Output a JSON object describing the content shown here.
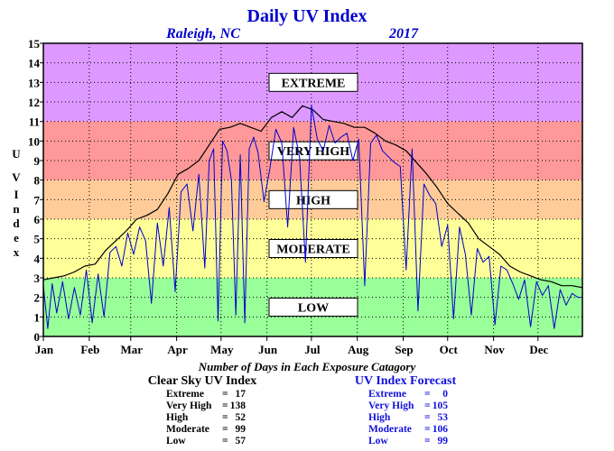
{
  "title": "Daily UV Index",
  "location": "Raleigh, NC",
  "year": "2017",
  "ylabel": "UV Index",
  "stats_title": "Number of Days in Each Exposure Catagory",
  "categories": [
    {
      "label": "EXTREME",
      "min": 11,
      "max": 15,
      "color": "#dd99ff"
    },
    {
      "label": "VERY HIGH",
      "min": 8,
      "max": 11,
      "color": "#ff9999"
    },
    {
      "label": "HIGH",
      "min": 6,
      "max": 8,
      "color": "#ffcc99"
    },
    {
      "label": "MODERATE",
      "min": 3,
      "max": 6,
      "color": "#ffff99"
    },
    {
      "label": "LOW",
      "min": 0,
      "max": 3,
      "color": "#99ff99"
    }
  ],
  "clear_sky": {
    "heading": "Clear Sky UV Index",
    "rows": [
      {
        "label": "Extreme",
        "sep": "=",
        "value": "17"
      },
      {
        "label": "Very High",
        "sep": "=",
        "value": "138"
      },
      {
        "label": "High",
        "sep": "=",
        "value": "52"
      },
      {
        "label": "Moderate",
        "sep": "=",
        "value": "99"
      },
      {
        "label": "Low",
        "sep": "=",
        "value": "57"
      }
    ]
  },
  "forecast": {
    "heading": "UV Index Forecast",
    "rows": [
      {
        "label": "Extreme",
        "sep": "=",
        "value": "0"
      },
      {
        "label": "Very High",
        "sep": "=",
        "value": "105"
      },
      {
        "label": "High",
        "sep": "=",
        "value": "53"
      },
      {
        "label": "Moderate",
        "sep": "=",
        "value": "106"
      },
      {
        "label": "Low",
        "sep": "=",
        "value": "99"
      }
    ]
  },
  "chart_data": {
    "type": "line",
    "title": "Daily UV Index",
    "subtitle": "Raleigh, NC 2017",
    "xlabel": "",
    "ylabel": "UV Index",
    "xlim": [
      1,
      365
    ],
    "ylim": [
      0,
      15
    ],
    "y_ticks": [
      0,
      1,
      2,
      3,
      4,
      5,
      6,
      7,
      8,
      9,
      10,
      11,
      12,
      13,
      14,
      15
    ],
    "x_ticks": [
      {
        "label": "Jan",
        "day": 1
      },
      {
        "label": "Feb",
        "day": 32
      },
      {
        "label": "Mar",
        "day": 60
      },
      {
        "label": "Apr",
        "day": 91
      },
      {
        "label": "May",
        "day": 121
      },
      {
        "label": "Jun",
        "day": 152
      },
      {
        "label": "Jul",
        "day": 182
      },
      {
        "label": "Aug",
        "day": 213
      },
      {
        "label": "Sep",
        "day": 244
      },
      {
        "label": "Oct",
        "day": 274
      },
      {
        "label": "Nov",
        "day": 305
      },
      {
        "label": "Dec",
        "day": 335
      }
    ],
    "grid": true,
    "series": [
      {
        "color": "#000000",
        "x": [
          1,
          8,
          15,
          22,
          29,
          36,
          43,
          50,
          57,
          64,
          71,
          78,
          85,
          92,
          99,
          106,
          113,
          120,
          127,
          134,
          141,
          148,
          155,
          162,
          169,
          176,
          183,
          190,
          197,
          204,
          211,
          218,
          225,
          232,
          239,
          246,
          253,
          260,
          267,
          274,
          281,
          288,
          295,
          302,
          309,
          316,
          323,
          330,
          337,
          344,
          351,
          358,
          365
        ],
        "y": [
          2.9,
          3.0,
          3.1,
          3.3,
          3.6,
          3.7,
          4.4,
          4.9,
          5.4,
          6.0,
          6.2,
          6.5,
          7.3,
          8.3,
          8.6,
          9.0,
          9.8,
          10.6,
          10.7,
          10.9,
          10.7,
          10.5,
          11.2,
          11.5,
          11.2,
          11.8,
          11.6,
          11.1,
          11.0,
          10.9,
          10.7,
          10.7,
          10.4,
          10.0,
          9.8,
          9.5,
          8.9,
          8.3,
          7.6,
          6.8,
          6.3,
          5.8,
          5.0,
          4.6,
          4.2,
          3.6,
          3.3,
          3.1,
          2.9,
          2.8,
          2.6,
          2.6,
          2.5
        ]
      },
      {
        "color": "#0000cc",
        "x": [
          1,
          4,
          7,
          10,
          14,
          18,
          22,
          26,
          30,
          34,
          38,
          42,
          46,
          50,
          54,
          58,
          62,
          66,
          70,
          74,
          78,
          82,
          86,
          90,
          94,
          98,
          102,
          106,
          110,
          113,
          116,
          119,
          122,
          125,
          128,
          131,
          134,
          137,
          140,
          143,
          146,
          150,
          154,
          158,
          162,
          166,
          170,
          174,
          178,
          182,
          186,
          190,
          194,
          198,
          202,
          206,
          210,
          214,
          218,
          222,
          226,
          230,
          234,
          238,
          242,
          246,
          250,
          254,
          258,
          262,
          266,
          270,
          274,
          278,
          282,
          286,
          290,
          294,
          298,
          302,
          306,
          310,
          314,
          318,
          322,
          326,
          330,
          334,
          338,
          342,
          346,
          350,
          354,
          358,
          362,
          365
        ],
        "y": [
          2.6,
          0.4,
          2.7,
          1.2,
          2.8,
          0.9,
          2.5,
          1.1,
          3.4,
          0.7,
          3.2,
          1.0,
          4.3,
          4.6,
          3.6,
          5.3,
          4.2,
          5.6,
          4.9,
          1.7,
          5.8,
          3.6,
          6.6,
          2.3,
          7.4,
          7.8,
          5.4,
          8.3,
          3.5,
          9.0,
          9.6,
          0.8,
          10.0,
          9.5,
          8.0,
          1.1,
          9.3,
          0.7,
          9.6,
          10.2,
          9.4,
          6.9,
          8.6,
          10.6,
          9.9,
          5.6,
          10.7,
          9.2,
          3.8,
          11.8,
          10.1,
          9.5,
          10.8,
          9.9,
          10.2,
          10.4,
          9.0,
          10.1,
          2.6,
          9.9,
          10.3,
          9.5,
          9.2,
          8.9,
          8.7,
          3.4,
          9.6,
          1.3,
          7.8,
          7.2,
          6.8,
          4.6,
          5.7,
          0.9,
          5.6,
          4.2,
          1.1,
          4.5,
          3.8,
          4.1,
          0.6,
          3.6,
          3.4,
          2.7,
          1.9,
          2.9,
          0.5,
          2.8,
          2.1,
          2.6,
          0.4,
          2.4,
          1.6,
          2.2,
          2.0,
          2.0
        ]
      }
    ]
  }
}
